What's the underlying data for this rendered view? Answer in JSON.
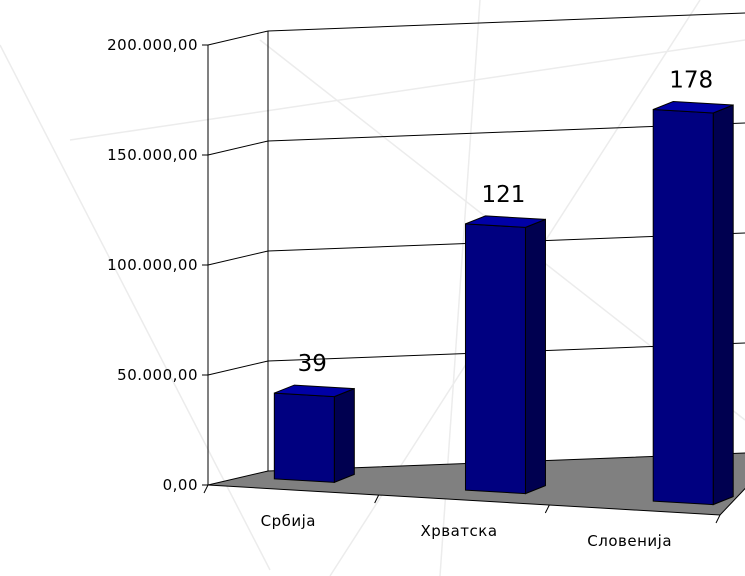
{
  "chart_data": {
    "type": "bar",
    "title": "",
    "xlabel": "",
    "ylabel": "",
    "categories": [
      "Србија",
      "Хрватска",
      "Словенија"
    ],
    "values": [
      39000,
      121000,
      178000
    ],
    "data_labels": [
      "39",
      "121",
      "178"
    ],
    "ylim": [
      0,
      200000
    ],
    "yticks": [
      {
        "value": 0,
        "label": "0,00"
      },
      {
        "value": 50000,
        "label": "50.000,00"
      },
      {
        "value": 100000,
        "label": "100.000,00"
      },
      {
        "value": 150000,
        "label": "150.000,00"
      },
      {
        "value": 200000,
        "label": "200.000,00"
      }
    ],
    "grid": true,
    "legend": "none",
    "style": "3d",
    "colors": {
      "bar_front": "#000080",
      "bar_side": "#000050",
      "bar_top": "#0000a6",
      "floor": "#808080",
      "grid": "#000000",
      "background": "#ffffff"
    }
  }
}
